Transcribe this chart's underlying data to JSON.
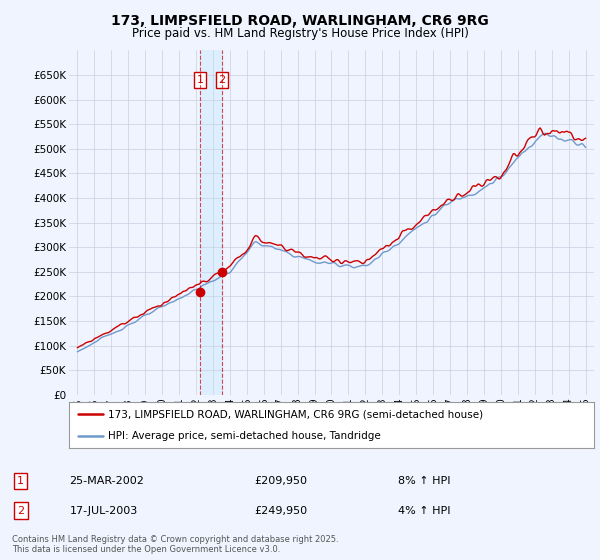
{
  "title": "173, LIMPSFIELD ROAD, WARLINGHAM, CR6 9RG",
  "subtitle": "Price paid vs. HM Land Registry's House Price Index (HPI)",
  "legend_line1": "173, LIMPSFIELD ROAD, WARLINGHAM, CR6 9RG (semi-detached house)",
  "legend_line2": "HPI: Average price, semi-detached house, Tandridge",
  "footer": "Contains HM Land Registry data © Crown copyright and database right 2025.\nThis data is licensed under the Open Government Licence v3.0.",
  "sale1_label": "1",
  "sale1_date": "25-MAR-2002",
  "sale1_price": "£209,950",
  "sale1_hpi": "8% ↑ HPI",
  "sale2_label": "2",
  "sale2_date": "17-JUL-2003",
  "sale2_price": "£249,950",
  "sale2_hpi": "4% ↑ HPI",
  "sale1_x": 2002.23,
  "sale2_x": 2003.54,
  "sale1_y": 209950,
  "sale2_y": 249950,
  "vline1_x": 2002.23,
  "vline2_x": 2003.54,
  "red_color": "#cc0000",
  "blue_color": "#7099cc",
  "shade_color": "#ddeeff",
  "background_color": "#f0f4ff",
  "grid_color": "#c8d0e0",
  "ylim": [
    0,
    700000
  ],
  "xlim": [
    1994.5,
    2025.5
  ],
  "yticks": [
    0,
    50000,
    100000,
    150000,
    200000,
    250000,
    300000,
    350000,
    400000,
    450000,
    500000,
    550000,
    600000,
    650000
  ],
  "xticks": [
    1995,
    1996,
    1997,
    1998,
    1999,
    2000,
    2001,
    2002,
    2003,
    2004,
    2005,
    2006,
    2007,
    2008,
    2009,
    2010,
    2011,
    2012,
    2013,
    2014,
    2015,
    2016,
    2017,
    2018,
    2019,
    2020,
    2021,
    2022,
    2023,
    2024,
    2025
  ]
}
